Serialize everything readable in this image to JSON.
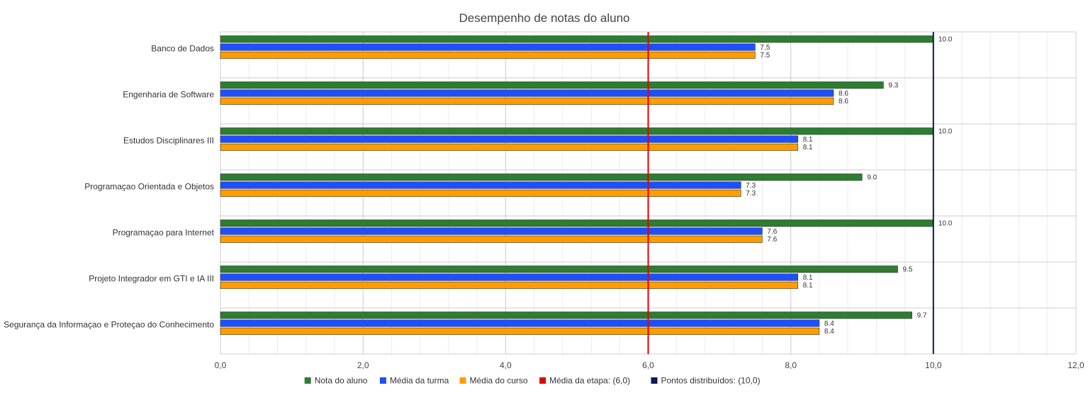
{
  "chart_data": {
    "type": "bar",
    "orientation": "horizontal",
    "title": "Desempenho de notas do aluno",
    "categories": [
      "Banco de Dados",
      "Engenharia de Software",
      "Estudos Disciplinares III",
      "Programaçao Orientada e Objetos",
      "Programaçao para Internet",
      "Projeto Integrador em GTI e IA III",
      "Segurança da Informaçao e Proteçao do Conhecimento"
    ],
    "series": [
      {
        "name": "Nota do aluno",
        "color": "#2e7d32",
        "values": [
          10.0,
          9.3,
          10.0,
          9.0,
          10.0,
          9.5,
          9.7
        ]
      },
      {
        "name": "Média da turma",
        "color": "#1f4fff",
        "values": [
          7.5,
          8.6,
          8.1,
          7.3,
          7.6,
          8.1,
          8.4
        ]
      },
      {
        "name": "Média do curso",
        "color": "#ff9d00",
        "values": [
          7.5,
          8.6,
          8.1,
          7.3,
          7.6,
          8.1,
          8.4
        ]
      }
    ],
    "reference_lines": [
      {
        "name": "Média da etapa: (6,0)",
        "value": 6.0,
        "color": "#e00000"
      },
      {
        "name": "Pontos distribuídos: (10,0)",
        "value": 10.0,
        "color": "#0b1a5a"
      }
    ],
    "xlim": [
      0,
      12
    ],
    "x_ticks": [
      "0,0",
      "2,0",
      "4,0",
      "6,0",
      "8,0",
      "10,0",
      "12,0"
    ],
    "xlabel": "",
    "ylabel": "",
    "grid": true,
    "legend_position": "bottom"
  }
}
